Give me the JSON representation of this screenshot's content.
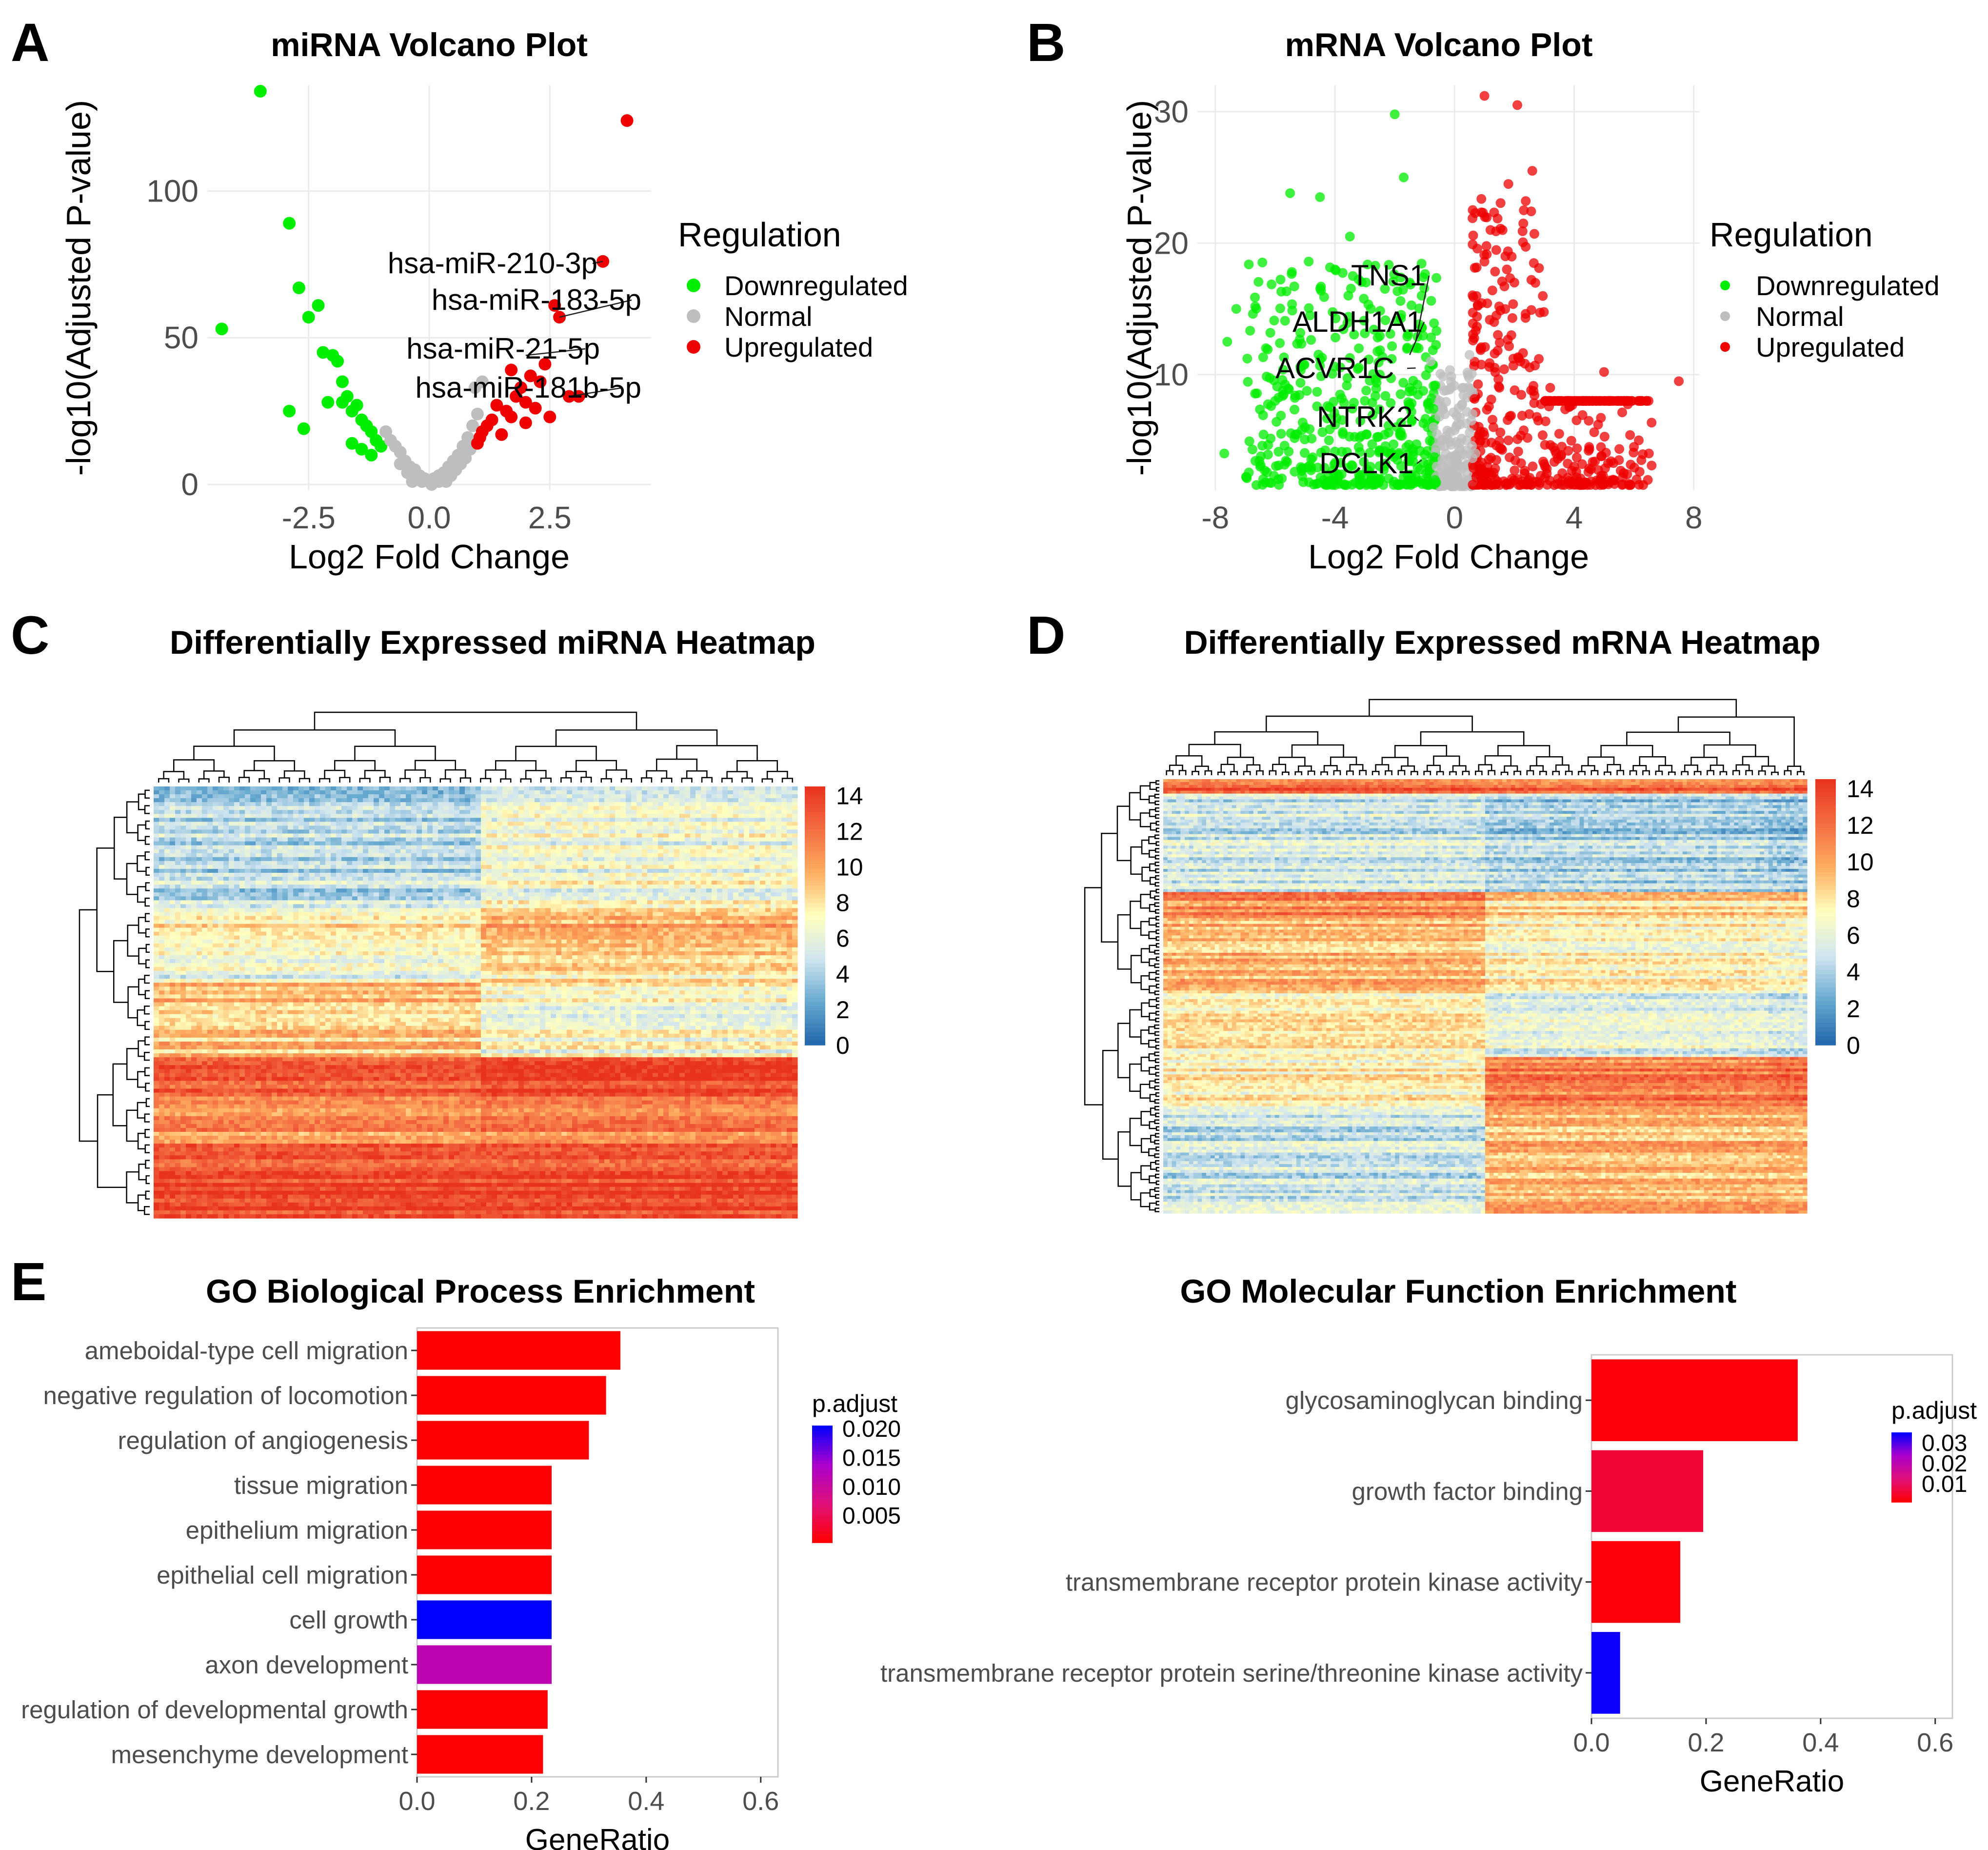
{
  "panel_letters": {
    "a": "A",
    "b": "B",
    "c": "C",
    "d": "D",
    "e": "E"
  },
  "colors": {
    "down": "#00ee00",
    "normal": "#bebebe",
    "up": "#ee0000",
    "heat_low": "#2166ac",
    "heat_mid": "#ffffbf",
    "heat_high": "#e8321e",
    "padj_low": "#ff0000",
    "padj_high": "#0000ff",
    "grid": "#ebebeb",
    "dendro": "#000000"
  },
  "chart_data": [
    {
      "id": "mirna_volcano",
      "type": "scatter",
      "title": "miRNA Volcano Plot",
      "xlabel": "Log2 Fold Change",
      "ylabel": "-log10(Adjusted P-value)",
      "xlim": [
        -4.6,
        4.6
      ],
      "ylim": [
        -2,
        136
      ],
      "xticks": [
        -2.5,
        0.0,
        2.5
      ],
      "xtick_labels": [
        "-2.5",
        "0.0",
        "2.5"
      ],
      "yticks": [
        0,
        50,
        100
      ],
      "ytick_labels": [
        "0",
        "50",
        "100"
      ],
      "legend": {
        "title": "Regulation",
        "entries": [
          "Downregulated",
          "Normal",
          "Upregulated"
        ],
        "position": "right"
      },
      "series": [
        {
          "name": "Downregulated",
          "points": [
            [
              -3.5,
              134
            ],
            [
              -4.3,
              53
            ],
            [
              -2.9,
              89
            ],
            [
              -2.7,
              67
            ],
            [
              -2.3,
              61
            ],
            [
              -2.5,
              57
            ],
            [
              -2.2,
              45
            ],
            [
              -2.0,
              44
            ],
            [
              -1.9,
              42
            ],
            [
              -2.9,
              25
            ],
            [
              -2.6,
              19
            ],
            [
              -2.1,
              28
            ],
            [
              -1.8,
              35
            ],
            [
              -1.7,
              30
            ],
            [
              -1.6,
              25
            ],
            [
              -1.5,
              27
            ],
            [
              -1.4,
              22
            ],
            [
              -1.3,
              20
            ],
            [
              -1.2,
              18
            ],
            [
              -1.1,
              15
            ],
            [
              -1.0,
              13
            ],
            [
              -1.6,
              14
            ],
            [
              -1.4,
              12
            ],
            [
              -1.8,
              28
            ],
            [
              -1.2,
              10
            ]
          ]
        },
        {
          "name": "Normal",
          "points": [
            [
              0.0,
              1
            ],
            [
              0.1,
              2
            ],
            [
              -0.1,
              2
            ],
            [
              0.2,
              3
            ],
            [
              -0.2,
              3
            ],
            [
              0.3,
              4
            ],
            [
              -0.3,
              5
            ],
            [
              0.4,
              6
            ],
            [
              -0.4,
              6
            ],
            [
              0.5,
              8
            ],
            [
              -0.5,
              8
            ],
            [
              0.6,
              10
            ],
            [
              -0.6,
              11
            ],
            [
              0.7,
              13
            ],
            [
              -0.7,
              13
            ],
            [
              0.8,
              16
            ],
            [
              -0.8,
              15
            ],
            [
              0.9,
              20
            ],
            [
              -0.9,
              18
            ],
            [
              1.0,
              24
            ],
            [
              1.1,
              35
            ],
            [
              0.95,
              33
            ],
            [
              0.2,
              1
            ],
            [
              -0.25,
              2
            ],
            [
              0.45,
              3
            ],
            [
              -0.45,
              4
            ],
            [
              0.55,
              5
            ],
            [
              -0.6,
              7
            ],
            [
              0.35,
              1
            ],
            [
              -0.35,
              1
            ],
            [
              0.65,
              7
            ],
            [
              0.75,
              9
            ],
            [
              0.85,
              12
            ],
            [
              -0.15,
              1
            ],
            [
              0.05,
              0
            ]
          ]
        },
        {
          "name": "Upregulated",
          "points": [
            [
              4.1,
              124
            ],
            [
              3.6,
              76
            ],
            [
              2.6,
              61
            ],
            [
              2.7,
              57
            ],
            [
              2.4,
              41
            ],
            [
              2.1,
              37
            ],
            [
              1.9,
              33
            ],
            [
              1.7,
              39
            ],
            [
              2.9,
              30
            ],
            [
              3.1,
              30
            ],
            [
              2.3,
              35
            ],
            [
              2.0,
              28
            ],
            [
              1.6,
              25
            ],
            [
              1.4,
              27
            ],
            [
              1.3,
              22
            ],
            [
              1.2,
              20
            ],
            [
              1.1,
              18
            ],
            [
              1.5,
              17
            ],
            [
              2.2,
              26
            ],
            [
              2.5,
              23
            ],
            [
              1.8,
              30
            ],
            [
              1.0,
              14
            ],
            [
              1.05,
              16
            ],
            [
              2.0,
              21
            ],
            [
              1.7,
              23
            ]
          ]
        }
      ],
      "annotations": [
        {
          "label": "hsa-miR-210-3p",
          "x": 3.6,
          "y": 76
        },
        {
          "label": "hsa-miR-183-5p",
          "x": 2.7,
          "y": 57
        },
        {
          "label": "hsa-miR-21-5p",
          "x": 2.0,
          "y": 44
        },
        {
          "label": "hsa-miR-181b-5p",
          "x": 2.9,
          "y": 30
        }
      ]
    },
    {
      "id": "mrna_volcano",
      "type": "scatter",
      "title": "mRNA Volcano Plot",
      "xlabel": "Log2 Fold Change",
      "ylabel": "-log10(Adjusted P-value)",
      "xlim": [
        -8.6,
        8.2
      ],
      "ylim": [
        1.2,
        32
      ],
      "xticks": [
        -8,
        -4,
        0,
        4,
        8
      ],
      "xtick_labels": [
        "-8",
        "-4",
        "0",
        "4",
        "8"
      ],
      "yticks": [
        10,
        20,
        30
      ],
      "ytick_labels": [
        "10",
        "20",
        "30"
      ],
      "legend": {
        "title": "Regulation",
        "entries": [
          "Downregulated",
          "Normal",
          "Upregulated"
        ],
        "position": "right"
      },
      "series": [
        {
          "name": "Downregulated",
          "points": [
            [
              -7.7,
              4
            ],
            [
              -7.3,
              15
            ],
            [
              -7.6,
              12.5
            ],
            [
              -6.5,
              3
            ],
            [
              -5.5,
              23.8
            ],
            [
              -4.5,
              23.5
            ],
            [
              -4.0,
              18
            ],
            [
              -3.5,
              20.5
            ],
            [
              -3.4,
              17.5
            ],
            [
              -2.0,
              29.8
            ],
            [
              -1.7,
              25
            ],
            [
              -1.5,
              17
            ],
            [
              -1.1,
              16
            ],
            [
              -2.8,
              15
            ],
            [
              -3.2,
              12
            ],
            [
              -5.0,
              6
            ],
            [
              -6.0,
              8
            ],
            [
              -3.0,
              8
            ],
            [
              -2.5,
              10
            ],
            [
              -1.5,
              9
            ],
            [
              -1.2,
              12
            ],
            [
              -0.9,
              6
            ],
            [
              -4.2,
              5
            ],
            [
              -5.8,
              5.5
            ],
            [
              -2.2,
              4
            ]
          ]
        },
        {
          "name": "Normal",
          "points": [
            [
              -0.6,
              3
            ],
            [
              -0.4,
              5
            ],
            [
              -0.2,
              2.5
            ],
            [
              0.2,
              3
            ],
            [
              0.4,
              5
            ],
            [
              0.6,
              7
            ],
            [
              -0.5,
              8
            ],
            [
              0.1,
              2.2
            ],
            [
              -0.3,
              4
            ],
            [
              0.3,
              9
            ],
            [
              -0.8,
              11
            ],
            [
              0.5,
              11.5
            ],
            [
              -0.7,
              6
            ],
            [
              0.7,
              4
            ],
            [
              0.0,
              3.5
            ]
          ]
        },
        {
          "name": "Upregulated",
          "points": [
            [
              1.0,
              31.2
            ],
            [
              2.1,
              30.5
            ],
            [
              2.6,
              25.5
            ],
            [
              1.8,
              24.5
            ],
            [
              1.7,
              19
            ],
            [
              2.0,
              17
            ],
            [
              1.4,
              14.5
            ],
            [
              1.9,
              13
            ],
            [
              1.2,
              21
            ],
            [
              2.3,
              21.5
            ],
            [
              3.2,
              9
            ],
            [
              3.8,
              8
            ],
            [
              5.0,
              10.2
            ],
            [
              7.5,
              9.5
            ],
            [
              6.5,
              4
            ],
            [
              6.0,
              4.5
            ],
            [
              5.5,
              3.5
            ],
            [
              4.5,
              4.5
            ],
            [
              4.0,
              3
            ],
            [
              3.5,
              5.5
            ],
            [
              3.0,
              3.2
            ],
            [
              2.5,
              7
            ],
            [
              1.5,
              9
            ],
            [
              2.2,
              11
            ],
            [
              1.3,
              6
            ],
            [
              1.8,
              5
            ],
            [
              2.8,
              6.5
            ],
            [
              4.8,
              6.2
            ],
            [
              3.4,
              4
            ],
            [
              1.1,
              3
            ]
          ]
        }
      ],
      "annotations": [
        {
          "label": "TNS1",
          "x": -1.3,
          "y": 12.5
        },
        {
          "label": "ALDH1A1",
          "x": -1.5,
          "y": 11.5
        },
        {
          "label": "ACVR1C",
          "x": -1.3,
          "y": 10.5
        },
        {
          "label": "NTRK2",
          "x": -1.2,
          "y": 6.5
        },
        {
          "label": "DCLK1",
          "x": -1.1,
          "y": 3.5
        }
      ]
    },
    {
      "id": "mirna_heatmap",
      "type": "heatmap",
      "title": "Differentially Expressed miRNA Heatmap",
      "value_range": [
        0,
        14.5
      ],
      "colorbar_ticks": [
        0,
        2,
        4,
        6,
        8,
        10,
        12,
        14
      ],
      "colorbar_labels": [
        "0",
        "2",
        "4",
        "6",
        "8",
        "10",
        "12",
        "14"
      ],
      "column_groups": [
        0.51,
        0.49
      ],
      "row_blocks": [
        {
          "rows": 0.28,
          "group_values": [
            4.5,
            6.5
          ]
        },
        {
          "rows": 0.09,
          "group_values": [
            7.5,
            9.5
          ]
        },
        {
          "rows": 0.08,
          "group_values": [
            6.0,
            8.0
          ]
        },
        {
          "rows": 0.18,
          "group_values": [
            9.0,
            6.8
          ]
        },
        {
          "rows": 0.1,
          "group_values": [
            12.0,
            13.0
          ]
        },
        {
          "rows": 0.1,
          "group_values": [
            10.5,
            11.0
          ]
        },
        {
          "rows": 0.17,
          "group_values": [
            13.5,
            13.5
          ]
        }
      ]
    },
    {
      "id": "mrna_heatmap",
      "type": "heatmap",
      "title": "Differentially Expressed mRNA Heatmap",
      "value_range": [
        0,
        14.5
      ],
      "colorbar_ticks": [
        0,
        2,
        4,
        6,
        8,
        10,
        12,
        14
      ],
      "colorbar_labels": [
        "0",
        "2",
        "4",
        "6",
        "8",
        "10",
        "12",
        "14"
      ],
      "column_groups": [
        0.5,
        0.44,
        0.06
      ],
      "row_blocks": [
        {
          "rows": 0.03,
          "group_values": [
            12.5,
            12.0,
            12.5
          ]
        },
        {
          "rows": 0.23,
          "group_values": [
            5.0,
            4.0,
            3.5
          ]
        },
        {
          "rows": 0.06,
          "group_values": [
            11.0,
            8.5,
            8.5
          ]
        },
        {
          "rows": 0.17,
          "group_values": [
            9.5,
            7.5,
            7.0
          ]
        },
        {
          "rows": 0.15,
          "group_values": [
            8.0,
            6.0,
            5.5
          ]
        },
        {
          "rows": 0.12,
          "group_values": [
            7.5,
            11.5,
            12.0
          ]
        },
        {
          "rows": 0.24,
          "group_values": [
            5.0,
            9.5,
            9.5
          ]
        }
      ]
    },
    {
      "id": "go_bp",
      "type": "bar",
      "orientation": "horizontal",
      "title": "GO Biological Process Enrichment",
      "xlabel": "GeneRatio",
      "xlim": [
        0,
        0.63
      ],
      "xticks": [
        0.0,
        0.2,
        0.4,
        0.6
      ],
      "xtick_labels": [
        "0.0",
        "0.2",
        "0.4",
        "0.6"
      ],
      "categories": [
        "ameboidal-type cell migration",
        "negative regulation of locomotion",
        "regulation of angiogenesis",
        "tissue migration",
        "epithelium migration",
        "epithelial cell migration",
        "cell growth",
        "axon development",
        "regulation of developmental growth",
        "mesenchyme development"
      ],
      "values": [
        0.355,
        0.33,
        0.3,
        0.235,
        0.235,
        0.235,
        0.235,
        0.235,
        0.228,
        0.22
      ],
      "p_adjust": [
        0.0004,
        0.0004,
        0.0004,
        0.0005,
        0.0005,
        0.0005,
        0.0205,
        0.0115,
        0.0006,
        0.0006
      ],
      "colorbar": {
        "title": "p.adjust",
        "range": [
          0.0003,
          0.0205
        ],
        "ticks": [
          0.02,
          0.015,
          0.01,
          0.005
        ],
        "labels": [
          "0.020",
          "0.015",
          "0.010",
          "0.005"
        ]
      }
    },
    {
      "id": "go_mf",
      "type": "bar",
      "orientation": "horizontal",
      "title": "GO Molecular Function Enrichment",
      "xlabel": "GeneRatio",
      "xlim": [
        0,
        0.63
      ],
      "xticks": [
        0.0,
        0.2,
        0.4,
        0.6
      ],
      "xtick_labels": [
        "0.0",
        "0.2",
        "0.4",
        "0.6"
      ],
      "categories": [
        "glycosaminoglycan binding",
        "growth factor binding",
        "transmembrane receptor protein kinase activity",
        "transmembrane receptor protein serine/threonine kinase activity"
      ],
      "values": [
        0.36,
        0.195,
        0.155,
        0.05
      ],
      "p_adjust": [
        0.002,
        0.006,
        0.002,
        0.034
      ],
      "colorbar": {
        "title": "p.adjust",
        "range": [
          0.001,
          0.035
        ],
        "ticks": [
          0.03,
          0.02,
          0.01
        ],
        "labels": [
          "0.03",
          "0.02",
          "0.01"
        ]
      }
    }
  ]
}
